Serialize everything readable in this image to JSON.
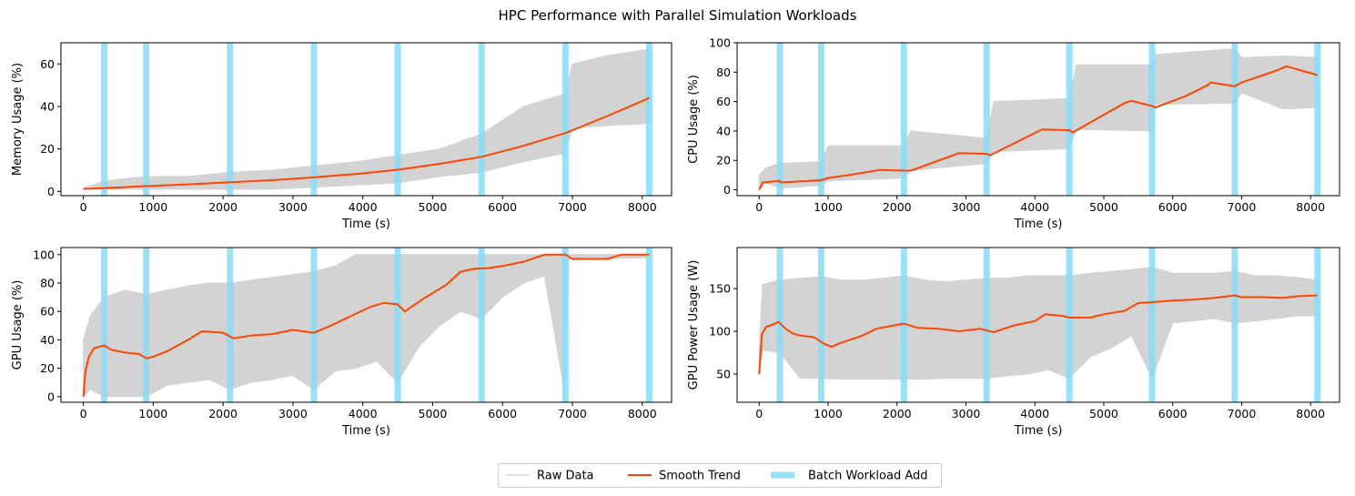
{
  "figure": {
    "title": "HPC Performance with Parallel Simulation Workloads"
  },
  "legend": {
    "placement": "bottom-center",
    "items": [
      {
        "label": "Raw Data",
        "color": "#d3d3d3"
      },
      {
        "label": "Smooth Trend",
        "color": "#ff4500"
      },
      {
        "label": "Batch Workload Add",
        "color": "#87dcf7"
      }
    ]
  },
  "colors": {
    "raw": "#d3d3d3",
    "trend": "#ff4500",
    "batch": "#87dcf7"
  },
  "chart_data": [
    {
      "type": "line",
      "position": "top-left",
      "xlabel": "Time (s)",
      "ylabel": "Memory Usage (%)",
      "xlim": [
        -320,
        8420
      ],
      "ylim": [
        -2,
        70
      ],
      "xticks": [
        0,
        1000,
        2000,
        3000,
        4000,
        5000,
        6000,
        7000,
        8000
      ],
      "yticks": [
        0,
        20,
        40,
        60
      ],
      "batch_times": [
        300,
        900,
        2100,
        3300,
        4500,
        5700,
        6900,
        8100
      ],
      "raw_band": {
        "x": [
          0,
          300,
          900,
          1500,
          2100,
          2700,
          3300,
          3900,
          4500,
          5100,
          5700,
          6300,
          6900,
          7000,
          7500,
          8100
        ],
        "low": [
          1,
          1,
          1,
          1,
          1,
          1,
          2,
          3,
          4,
          7,
          9,
          14,
          18,
          30,
          31,
          32
        ],
        "high": [
          1.5,
          5,
          7,
          7,
          9,
          10,
          12,
          14,
          17,
          20,
          27,
          40,
          46,
          60,
          64,
          67
        ]
      },
      "series": [
        {
          "name": "Raw Data",
          "role": "raw"
        },
        {
          "name": "Smooth Trend",
          "role": "trend",
          "x": [
            0,
            300,
            900,
            1500,
            2100,
            2700,
            3300,
            3900,
            4500,
            5100,
            5700,
            6300,
            6900,
            7500,
            8100
          ],
          "y": [
            1.2,
            1.5,
            2.5,
            3.3,
            4.3,
            5.3,
            6.6,
            8.2,
            10.2,
            13,
            16.3,
            21.5,
            27.5,
            35.5,
            44
          ]
        }
      ]
    },
    {
      "type": "line",
      "position": "top-right",
      "xlabel": "Time (s)",
      "ylabel": "CPU Usage (%)",
      "xlim": [
        -320,
        8420
      ],
      "ylim": [
        -4,
        100
      ],
      "xticks": [
        0,
        1000,
        2000,
        3000,
        4000,
        5000,
        6000,
        7000,
        8000
      ],
      "yticks": [
        0,
        20,
        40,
        60,
        80,
        100
      ],
      "batch_times": [
        300,
        900,
        2100,
        3300,
        4500,
        5700,
        6900,
        8100
      ],
      "raw_band": {
        "x": [
          0,
          100,
          300,
          900,
          1000,
          2100,
          2200,
          3300,
          3400,
          4500,
          4600,
          5700,
          5750,
          6900,
          7000,
          7600,
          8100
        ],
        "low": [
          0,
          5,
          1,
          3,
          6,
          8,
          13,
          18,
          26,
          28,
          41,
          40,
          58,
          59,
          66,
          55,
          56
        ],
        "high": [
          10,
          15,
          18,
          19,
          30,
          30,
          40,
          35,
          60,
          62,
          85,
          85,
          92,
          96,
          90,
          91,
          90
        ]
      },
      "series": [
        {
          "name": "Raw Data",
          "role": "raw"
        },
        {
          "name": "Smooth Trend",
          "role": "trend",
          "x": [
            0,
            50,
            300,
            310,
            900,
            1000,
            1300,
            1750,
            2100,
            2200,
            2900,
            3300,
            3350,
            4100,
            4500,
            4550,
            5300,
            5400,
            5700,
            5750,
            6200,
            6500,
            6550,
            6900,
            7000,
            7500,
            7650,
            8100
          ],
          "y": [
            0,
            5,
            6,
            5,
            6.5,
            8,
            10,
            13.5,
            13,
            13,
            25,
            24.5,
            23.5,
            41,
            40.5,
            39,
            59,
            60.5,
            57,
            56,
            64,
            71,
            73,
            70.5,
            73,
            81,
            84,
            78
          ]
        }
      ]
    },
    {
      "type": "line",
      "position": "bottom-left",
      "xlabel": "Time (s)",
      "ylabel": "GPU Usage (%)",
      "xlim": [
        -320,
        8420
      ],
      "ylim": [
        -4,
        105
      ],
      "xticks": [
        0,
        1000,
        2000,
        3000,
        4000,
        5000,
        6000,
        7000,
        8000
      ],
      "yticks": [
        0,
        20,
        40,
        60,
        80,
        100
      ],
      "batch_times": [
        300,
        900,
        2100,
        3300,
        4500,
        5700,
        6900,
        8100
      ],
      "raw_band": {
        "x": [
          0,
          100,
          300,
          600,
          900,
          1200,
          1500,
          1800,
          2100,
          2400,
          2700,
          3000,
          3300,
          3600,
          3900,
          4200,
          4500,
          4800,
          5100,
          5400,
          5700,
          6000,
          6300,
          6600,
          6900,
          6950,
          7500,
          8100
        ],
        "low": [
          0,
          5,
          0,
          0,
          0,
          8,
          10,
          12,
          5,
          10,
          12,
          15,
          5,
          18,
          20,
          25,
          10,
          35,
          50,
          60,
          55,
          70,
          80,
          85,
          0,
          97,
          97,
          98
        ],
        "high": [
          40,
          57,
          70,
          75,
          72,
          75,
          78,
          80,
          80,
          82,
          84,
          86,
          88,
          92,
          100,
          100,
          100,
          100,
          100,
          100,
          100,
          100,
          100,
          100,
          100,
          100,
          100,
          100
        ]
      },
      "series": [
        {
          "name": "Raw Data",
          "role": "raw"
        },
        {
          "name": "Smooth Trend",
          "role": "trend",
          "x": [
            0,
            30,
            80,
            150,
            300,
            400,
            600,
            800,
            900,
            1000,
            1200,
            1500,
            1700,
            2000,
            2150,
            2400,
            2700,
            3000,
            3300,
            3500,
            3800,
            4100,
            4300,
            4500,
            4600,
            4900,
            5200,
            5400,
            5600,
            5800,
            6000,
            6300,
            6600,
            6900,
            7000,
            7500,
            7700,
            8100
          ],
          "y": [
            0,
            18,
            28,
            34,
            36,
            33,
            31,
            30,
            27,
            28,
            32,
            40,
            46,
            45,
            41,
            43,
            44,
            47,
            45,
            49,
            56,
            63,
            66,
            65,
            60,
            70,
            79,
            88,
            90,
            90.5,
            92,
            95,
            100,
            100,
            97,
            97,
            100,
            100
          ]
        }
      ]
    },
    {
      "type": "line",
      "position": "bottom-right",
      "xlabel": "Time (s)",
      "ylabel": "GPU Power Usage (W)",
      "xlim": [
        -320,
        8420
      ],
      "ylim": [
        17,
        198
      ],
      "xticks": [
        0,
        1000,
        2000,
        3000,
        4000,
        5000,
        6000,
        7000,
        8000
      ],
      "yticks": [
        50,
        100,
        150
      ],
      "batch_times": [
        300,
        900,
        2100,
        3300,
        4500,
        5700,
        6900,
        8100
      ],
      "raw_band": {
        "x": [
          0,
          50,
          300,
          600,
          900,
          1200,
          1500,
          1800,
          2100,
          2400,
          2700,
          3000,
          3300,
          3600,
          3900,
          4200,
          4500,
          4800,
          5100,
          5400,
          5700,
          6000,
          6300,
          6600,
          6900,
          7200,
          7500,
          7800,
          8100
        ],
        "low": [
          52,
          78,
          75,
          45,
          45,
          44,
          44,
          44,
          44,
          44,
          45,
          45,
          45,
          48,
          50,
          55,
          45,
          70,
          80,
          95,
          45,
          110,
          112,
          115,
          110,
          112,
          115,
          118,
          118
        ],
        "high": [
          80,
          155,
          160,
          162,
          164,
          160,
          160,
          162,
          165,
          160,
          158,
          160,
          162,
          162,
          165,
          165,
          165,
          168,
          170,
          172,
          175,
          168,
          168,
          168,
          170,
          165,
          165,
          163,
          160
        ]
      },
      "series": [
        {
          "name": "Raw Data",
          "role": "raw"
        },
        {
          "name": "Smooth Trend",
          "role": "trend",
          "x": [
            0,
            40,
            100,
            200,
            280,
            400,
            500,
            600,
            800,
            950,
            1050,
            1200,
            1500,
            1700,
            1900,
            2100,
            2300,
            2600,
            2900,
            3200,
            3400,
            3700,
            4000,
            4150,
            4400,
            4500,
            4800,
            5000,
            5300,
            5500,
            5700,
            6000,
            6300,
            6600,
            6900,
            7000,
            7300,
            7600,
            7800,
            8100
          ],
          "y": [
            50,
            97,
            105,
            108,
            111,
            102,
            97,
            95,
            93,
            85,
            82,
            87,
            95,
            103,
            106,
            109,
            104,
            103,
            100,
            103,
            99,
            107,
            112,
            120,
            118,
            116,
            116,
            120,
            124,
            133,
            134,
            136,
            137,
            139,
            142,
            140,
            140,
            139,
            141,
            142
          ]
        }
      ]
    }
  ]
}
